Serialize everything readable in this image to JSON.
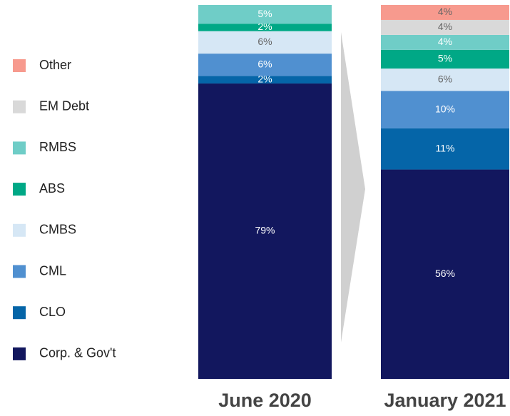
{
  "chart_data": {
    "type": "stacked_bar",
    "categories": [
      "June 2020",
      "January 2021"
    ],
    "ylim": [
      0,
      100
    ],
    "series": [
      {
        "name": "Corp. & Gov't",
        "color": "#12175e",
        "values": [
          79,
          56
        ],
        "value_labels": [
          "79%",
          "56%"
        ]
      },
      {
        "name": "CLO",
        "color": "#0565a8",
        "values": [
          2,
          11
        ],
        "value_labels": [
          "2%",
          "11%"
        ]
      },
      {
        "name": "CML",
        "color": "#5090d0",
        "values": [
          6,
          10
        ],
        "value_labels": [
          "6%",
          "10%"
        ]
      },
      {
        "name": "CMBS",
        "color": "#d6e7f5",
        "values": [
          6,
          6
        ],
        "value_labels": [
          "6%",
          "6%"
        ]
      },
      {
        "name": "ABS",
        "color": "#00a886",
        "values": [
          2,
          5
        ],
        "value_labels": [
          "2%",
          "5%"
        ]
      },
      {
        "name": "RMBS",
        "color": "#6fcdc7",
        "values": [
          5,
          4
        ],
        "value_labels": [
          "5%",
          "4%"
        ]
      },
      {
        "name": "EM Debt",
        "color": "#d9d9d9",
        "values": [
          null,
          4
        ],
        "value_labels": [
          null,
          "4%"
        ]
      },
      {
        "name": "Other",
        "color": "#f79a8e",
        "values": [
          null,
          4
        ],
        "value_labels": [
          null,
          "4%"
        ]
      }
    ]
  }
}
